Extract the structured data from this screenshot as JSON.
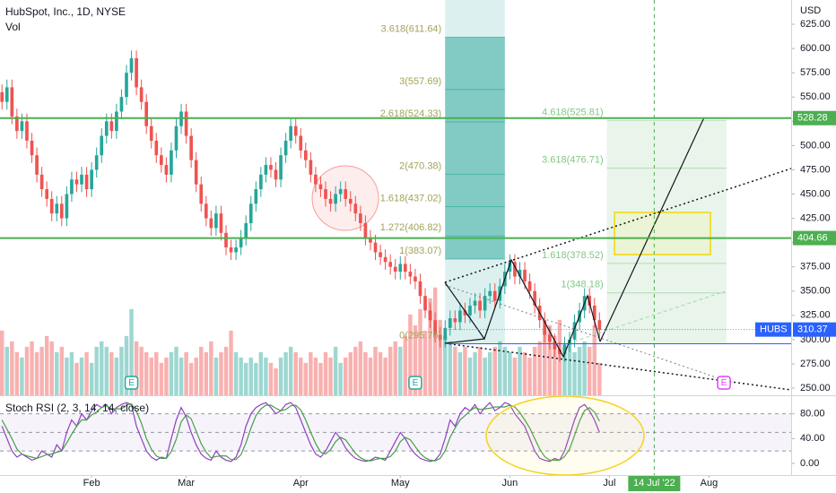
{
  "header": {
    "symbol": "HubSpot, Inc., 1D, NYSE",
    "currency": "USD"
  },
  "chart_data": [
    {
      "type": "candlestick",
      "xlim": [
        -0.4,
        158.5
      ],
      "ylim": [
        242.6,
        650
      ],
      "yticks": [
        {
          "value": 250,
          "label": "250.00"
        },
        {
          "value": 275,
          "label": "275.00"
        },
        {
          "value": 300,
          "label": "300.00"
        },
        {
          "value": 325,
          "label": "325.00"
        },
        {
          "value": 350,
          "label": "350.00"
        },
        {
          "value": 375,
          "label": "375.00"
        },
        {
          "value": 400,
          "label": "400.00"
        },
        {
          "value": 425,
          "label": "425.00"
        },
        {
          "value": 450,
          "label": "450.00"
        },
        {
          "value": 475,
          "label": "475.00"
        },
        {
          "value": 500,
          "label": "500.00"
        },
        {
          "value": 525,
          "label": "525.00"
        },
        {
          "value": 550,
          "label": "550.00"
        },
        {
          "value": 575,
          "label": "575.00"
        },
        {
          "value": 600,
          "label": "600.00"
        },
        {
          "value": 625,
          "label": "625.00"
        }
      ],
      "xticks": [
        {
          "value": 18,
          "label": "Feb"
        },
        {
          "value": 37,
          "label": "Mar"
        },
        {
          "value": 60,
          "label": "Apr"
        },
        {
          "value": 80,
          "label": "May"
        },
        {
          "value": 102,
          "label": "Jun"
        },
        {
          "value": 122,
          "label": "Jul"
        },
        {
          "value": 142,
          "label": "Aug"
        }
      ],
      "up_color": "#26a69a",
      "down_color": "#ef5350",
      "open": [
        555,
        545,
        560,
        530,
        515,
        525,
        505,
        490,
        470,
        455,
        445,
        430,
        440,
        425,
        450,
        465,
        460,
        470,
        455,
        475,
        490,
        510,
        525,
        515,
        535,
        550,
        575,
        590,
        560,
        545,
        520,
        505,
        490,
        480,
        470,
        495,
        520,
        535,
        510,
        485,
        460,
        440,
        425,
        415,
        430,
        410,
        395,
        390,
        395,
        405,
        420,
        440,
        455,
        470,
        480,
        475,
        465,
        490,
        505,
        520,
        510,
        495,
        485,
        470,
        460,
        455,
        445,
        440,
        450,
        455,
        445,
        440,
        430,
        420,
        405,
        400,
        390,
        385,
        380,
        375,
        370,
        378,
        370,
        365,
        360,
        345,
        330,
        320,
        305,
        300,
        312,
        322,
        318,
        330,
        325,
        335,
        340,
        330,
        345,
        350,
        340,
        355,
        370,
        380,
        365,
        372,
        360,
        350,
        335,
        320,
        305,
        298,
        290,
        285,
        295,
        300,
        318,
        330,
        345,
        335,
        320
      ],
      "high": [
        563,
        568,
        568,
        538,
        533,
        533,
        513,
        498,
        478,
        463,
        453,
        448,
        448,
        458,
        473,
        473,
        478,
        478,
        483,
        498,
        518,
        533,
        533,
        543,
        558,
        583,
        598,
        598,
        568,
        553,
        528,
        513,
        498,
        488,
        503,
        528,
        543,
        543,
        518,
        493,
        468,
        448,
        433,
        438,
        438,
        418,
        403,
        403,
        413,
        428,
        448,
        463,
        478,
        488,
        488,
        483,
        498,
        513,
        528,
        528,
        518,
        503,
        493,
        478,
        468,
        463,
        453,
        458,
        463,
        463,
        453,
        448,
        438,
        428,
        413,
        408,
        398,
        393,
        388,
        383,
        386,
        386,
        378,
        373,
        368,
        353,
        338,
        328,
        313,
        320,
        330,
        330,
        338,
        338,
        343,
        348,
        348,
        353,
        358,
        358,
        363,
        378,
        388,
        388,
        380,
        380,
        368,
        358,
        343,
        328,
        313,
        306,
        298,
        303,
        308,
        326,
        338,
        353,
        353,
        343,
        328
      ],
      "low": [
        537,
        537,
        522,
        507,
        507,
        497,
        482,
        462,
        447,
        437,
        422,
        422,
        417,
        417,
        442,
        452,
        452,
        447,
        447,
        467,
        482,
        502,
        507,
        507,
        527,
        542,
        567,
        552,
        537,
        512,
        497,
        482,
        472,
        462,
        462,
        487,
        512,
        502,
        477,
        452,
        432,
        417,
        407,
        407,
        402,
        387,
        382,
        382,
        387,
        397,
        412,
        432,
        447,
        462,
        467,
        457,
        457,
        482,
        497,
        502,
        487,
        477,
        462,
        452,
        447,
        437,
        432,
        432,
        442,
        437,
        432,
        422,
        412,
        397,
        392,
        382,
        377,
        372,
        367,
        362,
        362,
        362,
        357,
        352,
        337,
        322,
        312,
        297,
        292,
        292,
        304,
        310,
        310,
        317,
        317,
        327,
        322,
        322,
        337,
        332,
        332,
        347,
        362,
        357,
        357,
        352,
        342,
        327,
        312,
        297,
        290,
        282,
        277,
        277,
        287,
        292,
        310,
        322,
        327,
        312,
        302
      ],
      "close": [
        545,
        560,
        530,
        515,
        525,
        505,
        490,
        470,
        455,
        445,
        430,
        440,
        425,
        450,
        465,
        460,
        470,
        455,
        475,
        490,
        510,
        525,
        515,
        535,
        550,
        575,
        590,
        560,
        545,
        520,
        505,
        490,
        480,
        470,
        495,
        520,
        535,
        510,
        485,
        460,
        440,
        425,
        415,
        430,
        410,
        395,
        390,
        395,
        405,
        420,
        440,
        455,
        470,
        480,
        475,
        465,
        490,
        505,
        520,
        510,
        495,
        485,
        470,
        460,
        455,
        445,
        440,
        450,
        455,
        445,
        440,
        430,
        420,
        405,
        400,
        390,
        385,
        380,
        375,
        370,
        378,
        370,
        365,
        360,
        345,
        330,
        320,
        305,
        300,
        312,
        322,
        318,
        330,
        325,
        335,
        340,
        330,
        345,
        350,
        340,
        355,
        370,
        380,
        365,
        372,
        360,
        350,
        335,
        320,
        305,
        298,
        290,
        285,
        295,
        300,
        318,
        330,
        345,
        335,
        320,
        310
      ],
      "volume": {
        "name": "Vol",
        "ylim": [
          0,
          2.2
        ],
        "values": [
          1.2,
          0.9,
          1.0,
          0.8,
          0.7,
          0.9,
          1.0,
          0.8,
          0.9,
          1.1,
          1.0,
          0.8,
          0.9,
          0.7,
          0.8,
          0.6,
          0.7,
          0.8,
          0.6,
          0.9,
          1.0,
          0.9,
          0.8,
          0.7,
          0.9,
          1.1,
          1.6,
          1.0,
          0.9,
          0.8,
          0.7,
          0.8,
          0.6,
          0.7,
          0.8,
          0.9,
          0.7,
          0.8,
          0.6,
          0.7,
          0.9,
          0.8,
          1.0,
          0.7,
          0.8,
          0.9,
          1.2,
          0.8,
          0.7,
          0.6,
          0.7,
          0.6,
          0.8,
          0.7,
          0.6,
          0.5,
          0.7,
          0.8,
          0.9,
          0.8,
          0.7,
          0.6,
          0.8,
          0.7,
          0.6,
          0.8,
          0.7,
          0.9,
          0.6,
          0.7,
          0.8,
          0.9,
          1.0,
          0.8,
          0.7,
          0.9,
          0.8,
          0.7,
          0.9,
          1.0,
          0.9,
          1.1,
          1.5,
          1.3,
          1.6,
          1.2,
          1.8,
          2.0,
          1.4,
          1.1,
          1.0,
          0.9,
          0.8,
          0.9,
          0.7,
          0.8,
          0.9,
          0.7,
          0.8,
          0.9,
          1.0,
          0.9,
          0.8,
          0.7,
          0.9,
          0.8,
          0.7,
          0.9,
          1.0,
          1.2,
          1.3,
          1.1,
          1.4,
          0.9,
          1.0,
          0.8,
          0.9,
          1.0,
          0.9,
          1.3,
          0.6
        ]
      },
      "levels": [
        {
          "value": 528.28,
          "color": "#4caf50"
        },
        {
          "value": 404.66,
          "color": "#4caf50"
        }
      ],
      "last_price": {
        "symbol": "HUBS",
        "value": 310.37,
        "color": "#2962ff"
      },
      "fib_left": {
        "color": "#a3a35a",
        "levels": [
          {
            "label": "3.618(611.64)",
            "price": 611.64
          },
          {
            "label": "3(557.69)",
            "price": 557.69
          },
          {
            "label": "2.618(524.33)",
            "price": 524.33
          },
          {
            "label": "2(470.38)",
            "price": 470.38
          },
          {
            "label": "1.618(437.02)",
            "price": 437.02
          },
          {
            "label": "1.272(406.82)",
            "price": 406.82
          },
          {
            "label": "1(383.07)",
            "price": 383.07
          },
          {
            "label": "0(295.76)",
            "price": 295.76
          }
        ]
      },
      "fib_right": {
        "color": "#81c784",
        "levels": [
          {
            "label": "4.618(525.81)",
            "price": 525.81
          },
          {
            "label": "3.618(476.71)",
            "price": 476.71
          },
          {
            "label": "1.618(378.52)",
            "price": 378.52
          },
          {
            "label": "1(348.18)",
            "price": 348.18
          }
        ]
      },
      "marker_date": {
        "value": 131,
        "label": "14 Jul '22",
        "color": "#4caf50"
      },
      "earnings": [
        {
          "value": 26,
          "label": "E",
          "color": "#26a69a"
        },
        {
          "value": 83,
          "label": "E",
          "color": "#26a69a"
        },
        {
          "value": 145,
          "label": "E",
          "color": "#e040fb"
        }
      ]
    },
    {
      "type": "line",
      "title": "Stoch RSI (2, 3, 14, 14, close)",
      "ylim": [
        -19,
        107
      ],
      "yticks": [
        {
          "value": 80,
          "label": "80.00"
        },
        {
          "value": 40,
          "label": "40.00"
        },
        {
          "value": 0,
          "label": "0.00"
        }
      ],
      "levels": [
        80,
        50,
        20
      ],
      "series": [
        {
          "color": "#8e3fc0",
          "values": [
            60,
            40,
            20,
            10,
            15,
            10,
            5,
            8,
            20,
            15,
            10,
            30,
            20,
            50,
            70,
            60,
            80,
            70,
            85,
            95,
            90,
            95,
            80,
            90,
            95,
            98,
            95,
            60,
            40,
            20,
            10,
            5,
            10,
            8,
            40,
            70,
            90,
            75,
            50,
            30,
            15,
            8,
            5,
            20,
            10,
            5,
            3,
            10,
            30,
            60,
            80,
            90,
            95,
            98,
            90,
            80,
            85,
            95,
            98,
            90,
            70,
            50,
            30,
            15,
            10,
            20,
            35,
            50,
            40,
            25,
            15,
            8,
            5,
            3,
            5,
            10,
            8,
            5,
            20,
            35,
            50,
            40,
            25,
            15,
            8,
            5,
            3,
            5,
            15,
            40,
            70,
            60,
            80,
            90,
            85,
            95,
            80,
            90,
            98,
            85,
            90,
            98,
            95,
            80,
            70,
            60,
            40,
            20,
            8,
            5,
            3,
            8,
            5,
            20,
            45,
            70,
            90,
            95,
            85,
            70,
            50
          ]
        },
        {
          "color": "#43a047",
          "values": [
            70,
            55,
            40,
            23,
            15,
            12,
            10,
            8,
            11,
            14,
            15,
            18,
            20,
            33,
            47,
            60,
            70,
            70,
            78,
            83,
            90,
            93,
            88,
            88,
            88,
            94,
            96,
            84,
            65,
            40,
            23,
            12,
            8,
            8,
            19,
            39,
            67,
            78,
            72,
            52,
            32,
            18,
            9,
            11,
            12,
            12,
            6,
            6,
            14,
            33,
            57,
            77,
            88,
            94,
            94,
            89,
            85,
            87,
            93,
            94,
            86,
            70,
            50,
            32,
            18,
            15,
            22,
            35,
            42,
            38,
            27,
            16,
            9,
            5,
            4,
            6,
            8,
            8,
            11,
            20,
            35,
            42,
            38,
            27,
            16,
            9,
            5,
            4,
            8,
            20,
            42,
            57,
            70,
            77,
            85,
            90,
            87,
            88,
            89,
            91,
            91,
            91,
            94,
            91,
            82,
            70,
            57,
            40,
            23,
            11,
            5,
            5,
            5,
            11,
            23,
            45,
            68,
            85,
            90,
            83,
            68
          ]
        }
      ]
    }
  ]
}
